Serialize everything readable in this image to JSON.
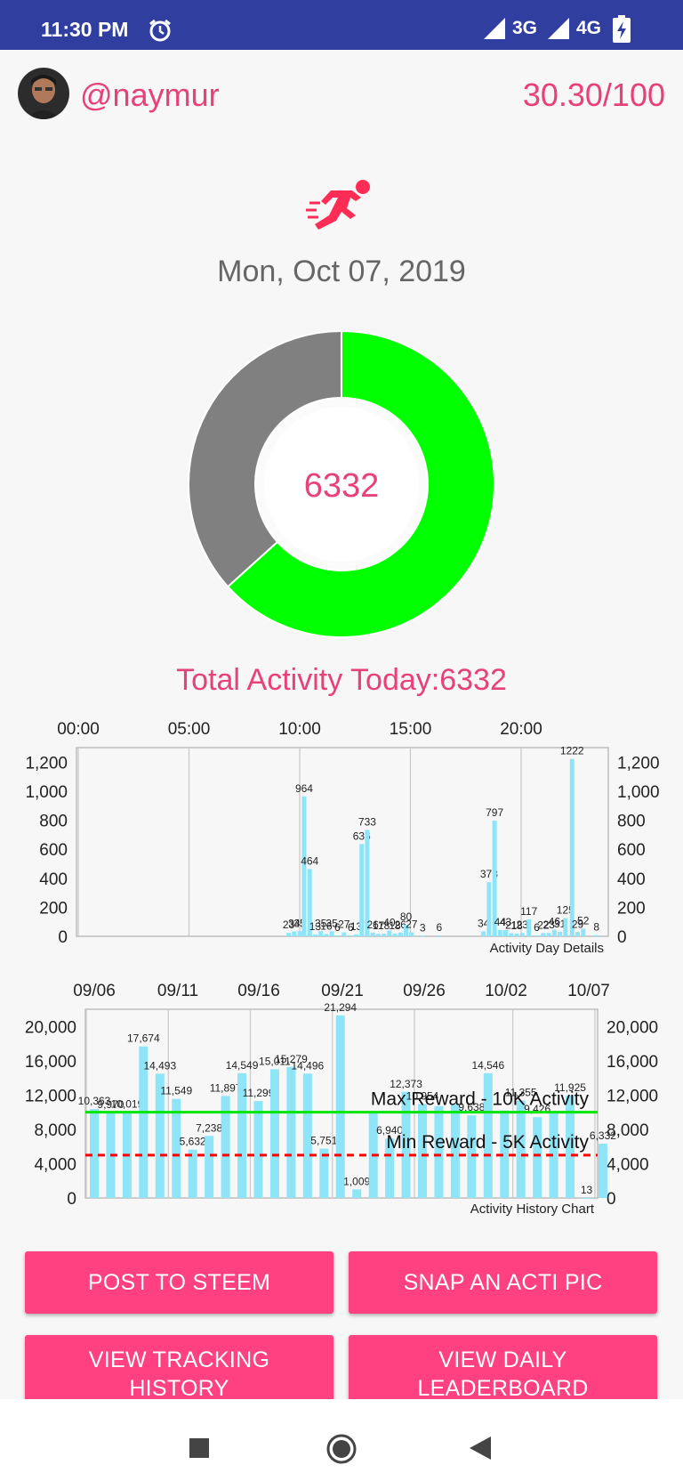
{
  "status_bar": {
    "time": "11:30 PM",
    "network_1": "3G",
    "network_2": "4G",
    "icons": [
      "alarm-icon",
      "signal-icon",
      "battery-charging-icon"
    ]
  },
  "header": {
    "username": "@naymur",
    "score": "30.30/100"
  },
  "date": "Mon, Oct 07, 2019",
  "donut": {
    "center_value": "6332",
    "progress_fraction": 0.6332,
    "colors": {
      "done": "#00ff00",
      "remaining": "#808080"
    }
  },
  "total_label": "Total Activity Today:6332",
  "chart_data": [
    {
      "type": "bar",
      "caption": "Activity Day Details",
      "top_axis_ticks": [
        "00:00",
        "05:00",
        "10:00",
        "15:00",
        "20:00"
      ],
      "y_ticks": [
        "0",
        "200",
        "400",
        "600",
        "800",
        "1,000",
        "1,200"
      ],
      "ylim": [
        0,
        1300
      ],
      "grid": true,
      "bar_color": "#8ee5f8",
      "x_unit": "hour of day",
      "bars": [
        {
          "x": 9.5,
          "value": 23,
          "label": "23"
        },
        {
          "x": 9.75,
          "value": 34,
          "label": "34"
        },
        {
          "x": 10.0,
          "value": 35,
          "label": "35"
        },
        {
          "x": 10.2,
          "value": 964,
          "label": "964"
        },
        {
          "x": 10.45,
          "value": 464,
          "label": "464"
        },
        {
          "x": 10.7,
          "value": 13,
          "label": "13"
        },
        {
          "x": 10.95,
          "value": 35,
          "label": "35"
        },
        {
          "x": 11.2,
          "value": 16,
          "label": "16"
        },
        {
          "x": 11.45,
          "value": 35,
          "label": "35"
        },
        {
          "x": 11.7,
          "value": 6,
          "label": "6"
        },
        {
          "x": 12.0,
          "value": 27,
          "label": "27"
        },
        {
          "x": 12.3,
          "value": 6,
          "label": "6"
        },
        {
          "x": 12.55,
          "value": 13,
          "label": "13"
        },
        {
          "x": 12.8,
          "value": 636,
          "label": "636"
        },
        {
          "x": 13.05,
          "value": 733,
          "label": "733"
        },
        {
          "x": 13.3,
          "value": 26,
          "label": "26"
        },
        {
          "x": 13.55,
          "value": 17,
          "label": "17"
        },
        {
          "x": 13.8,
          "value": 18,
          "label": "18"
        },
        {
          "x": 14.05,
          "value": 40,
          "label": "40"
        },
        {
          "x": 14.3,
          "value": 18,
          "label": "18"
        },
        {
          "x": 14.55,
          "value": 26,
          "label": "26"
        },
        {
          "x": 14.8,
          "value": 80,
          "label": "80"
        },
        {
          "x": 15.05,
          "value": 27,
          "label": "27"
        },
        {
          "x": 15.55,
          "value": 3,
          "label": "3"
        },
        {
          "x": 16.3,
          "value": 6,
          "label": "6"
        },
        {
          "x": 18.3,
          "value": 34,
          "label": "34"
        },
        {
          "x": 18.55,
          "value": 373,
          "label": "373"
        },
        {
          "x": 18.8,
          "value": 797,
          "label": "797"
        },
        {
          "x": 19.05,
          "value": 44,
          "label": "44"
        },
        {
          "x": 19.3,
          "value": 43,
          "label": "43"
        },
        {
          "x": 19.55,
          "value": 21,
          "label": "21"
        },
        {
          "x": 19.8,
          "value": 18,
          "label": "18"
        },
        {
          "x": 20.05,
          "value": 23,
          "label": "23"
        },
        {
          "x": 20.35,
          "value": 117,
          "label": "117"
        },
        {
          "x": 20.7,
          "value": 6,
          "label": "6"
        },
        {
          "x": 21.0,
          "value": 22,
          "label": "22"
        },
        {
          "x": 21.25,
          "value": 23,
          "label": "23"
        },
        {
          "x": 21.5,
          "value": 46,
          "label": "46"
        },
        {
          "x": 21.75,
          "value": 31,
          "label": "31"
        },
        {
          "x": 22.0,
          "value": 125,
          "label": "125"
        },
        {
          "x": 22.3,
          "value": 1222,
          "label": "1222"
        },
        {
          "x": 22.55,
          "value": 29,
          "label": "29"
        },
        {
          "x": 22.8,
          "value": 52,
          "label": "52"
        },
        {
          "x": 23.4,
          "value": 8,
          "label": "8"
        }
      ]
    },
    {
      "type": "bar",
      "caption": "Activity History Chart",
      "top_axis_ticks": [
        "09/06",
        "09/11",
        "09/16",
        "09/21",
        "09/26",
        "10/02",
        "10/07"
      ],
      "y_ticks": [
        "0",
        "4,000",
        "8,000",
        "12,000",
        "16,000",
        "20,000"
      ],
      "ylim": [
        0,
        22000
      ],
      "grid": true,
      "bar_color": "#8ee5f8",
      "x_unit": "day index (0 = 09/06)",
      "values": [
        10363,
        9970,
        10019,
        17674,
        14493,
        11549,
        5632,
        7238,
        11897,
        14549,
        11299,
        15011,
        15279,
        14496,
        5751,
        21294,
        1009,
        9989,
        6940,
        12373,
        10954,
        10700,
        10954,
        9638,
        14546,
        10200,
        11355,
        9426,
        9866,
        11925,
        13,
        6332
      ],
      "value_labels": [
        "10,363",
        "9,970",
        "10,019",
        "17,674",
        "14,493",
        "11,549",
        "5,632",
        "7,238",
        "11,897",
        "14,549",
        "11,299",
        "15,011",
        "15,279",
        "14,496",
        "5,751",
        "21,294",
        "1,009",
        "",
        "6,940",
        "12,373",
        "10,954",
        "",
        "",
        "9,638",
        "14,546",
        "",
        "11,355",
        "9,426",
        "",
        "11,925",
        "13",
        "6,332"
      ],
      "reference_lines": [
        {
          "label": "Max Reward - 10K Activity",
          "value": 10000,
          "color": "#00e600",
          "style": "solid"
        },
        {
          "label": "Min Reward - 5K Activity",
          "value": 5000,
          "color": "#ff0000",
          "style": "dashed"
        }
      ]
    }
  ],
  "buttons": {
    "post": "POST TO STEEM",
    "snap": "SNAP AN ACTI PIC",
    "history_line1": "VIEW TRACKING",
    "history_line2": "HISTORY",
    "leader_line1": "VIEW DAILY",
    "leader_line2": "LEADERBOARD"
  },
  "nav": {
    "icons": [
      "recents-square-icon",
      "home-circle-icon",
      "back-triangle-icon"
    ]
  }
}
